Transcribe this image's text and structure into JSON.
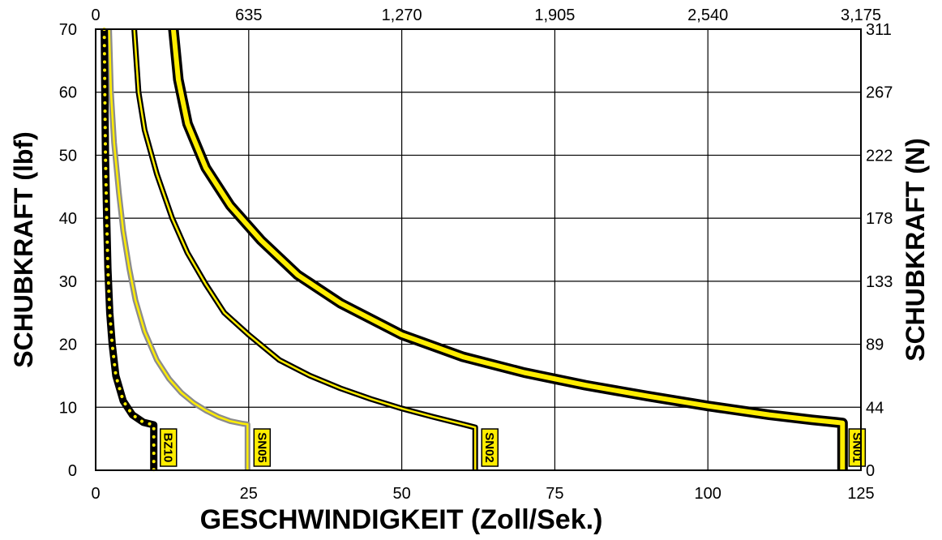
{
  "chart_data": {
    "type": "line",
    "xlabel": "GESCHWINDIGKEIT (Zoll/Sek.)",
    "ylabel": "SCHUBKRAFT (lbf)",
    "y2label": "SCHUBKRAFT (N)",
    "xlim": [
      0,
      125
    ],
    "ylim": [
      0,
      70
    ],
    "grid": true,
    "x_ticks": [
      "0",
      "25",
      "50",
      "75",
      "100",
      "125"
    ],
    "y_ticks": [
      "0",
      "10",
      "20",
      "30",
      "40",
      "50",
      "60",
      "70"
    ],
    "x2_ticks": [
      "0",
      "635",
      "1,270",
      "1,905",
      "2,540",
      "3,175"
    ],
    "y2_ticks": [
      "0",
      "44",
      "89",
      "133",
      "178",
      "222",
      "267",
      "311"
    ],
    "series": [
      {
        "name": "SN01",
        "style": "yellow-black-thick",
        "color": "#ffed00",
        "points": [
          [
            12.7,
            70
          ],
          [
            13.5,
            62
          ],
          [
            15,
            55
          ],
          [
            18,
            48
          ],
          [
            22,
            42
          ],
          [
            27,
            36.5
          ],
          [
            33,
            31
          ],
          [
            40,
            26.5
          ],
          [
            50,
            21.5
          ],
          [
            60,
            18
          ],
          [
            70,
            15.5
          ],
          [
            80,
            13.5
          ],
          [
            90,
            11.8
          ],
          [
            100,
            10.2
          ],
          [
            110,
            8.8
          ],
          [
            117,
            8
          ],
          [
            121,
            7.6
          ],
          [
            122,
            7.5
          ],
          [
            122,
            0
          ]
        ]
      },
      {
        "name": "SN02",
        "style": "yellow-black-thin",
        "color": "#ffed00",
        "points": [
          [
            6.3,
            70
          ],
          [
            7,
            60
          ],
          [
            8,
            54
          ],
          [
            10,
            47
          ],
          [
            12.5,
            40
          ],
          [
            15,
            34.5
          ],
          [
            18,
            29.5
          ],
          [
            21,
            25
          ],
          [
            25,
            21.5
          ],
          [
            30,
            17.5
          ],
          [
            35,
            15
          ],
          [
            40,
            13
          ],
          [
            45,
            11.3
          ],
          [
            50,
            9.8
          ],
          [
            55,
            8.5
          ],
          [
            60,
            7.3
          ],
          [
            62,
            6.8
          ],
          [
            62,
            0
          ]
        ]
      },
      {
        "name": "SN05",
        "style": "yellow-gray",
        "color": "#ffed00",
        "points": [
          [
            2.2,
            70
          ],
          [
            2.5,
            60
          ],
          [
            3,
            52
          ],
          [
            3.8,
            44
          ],
          [
            4.5,
            38
          ],
          [
            5.5,
            32
          ],
          [
            6.5,
            27
          ],
          [
            8,
            22
          ],
          [
            10,
            17.5
          ],
          [
            12,
            14.5
          ],
          [
            14,
            12.3
          ],
          [
            16,
            10.7
          ],
          [
            18,
            9.5
          ],
          [
            20,
            8.5
          ],
          [
            22,
            7.8
          ],
          [
            24,
            7.4
          ],
          [
            24.8,
            7.3
          ],
          [
            24.8,
            0
          ]
        ]
      },
      {
        "name": "BZ10",
        "style": "black-yellow-dotted",
        "color": "#ffed00",
        "points": [
          [
            1.4,
            70
          ],
          [
            1.5,
            60
          ],
          [
            1.6,
            50
          ],
          [
            1.8,
            40
          ],
          [
            2,
            32
          ],
          [
            2.3,
            25
          ],
          [
            2.7,
            20
          ],
          [
            3.3,
            15
          ],
          [
            4.5,
            11
          ],
          [
            6,
            8.8
          ],
          [
            7.8,
            7.6
          ],
          [
            9.5,
            7.2
          ],
          [
            9.5,
            0
          ]
        ]
      }
    ]
  }
}
